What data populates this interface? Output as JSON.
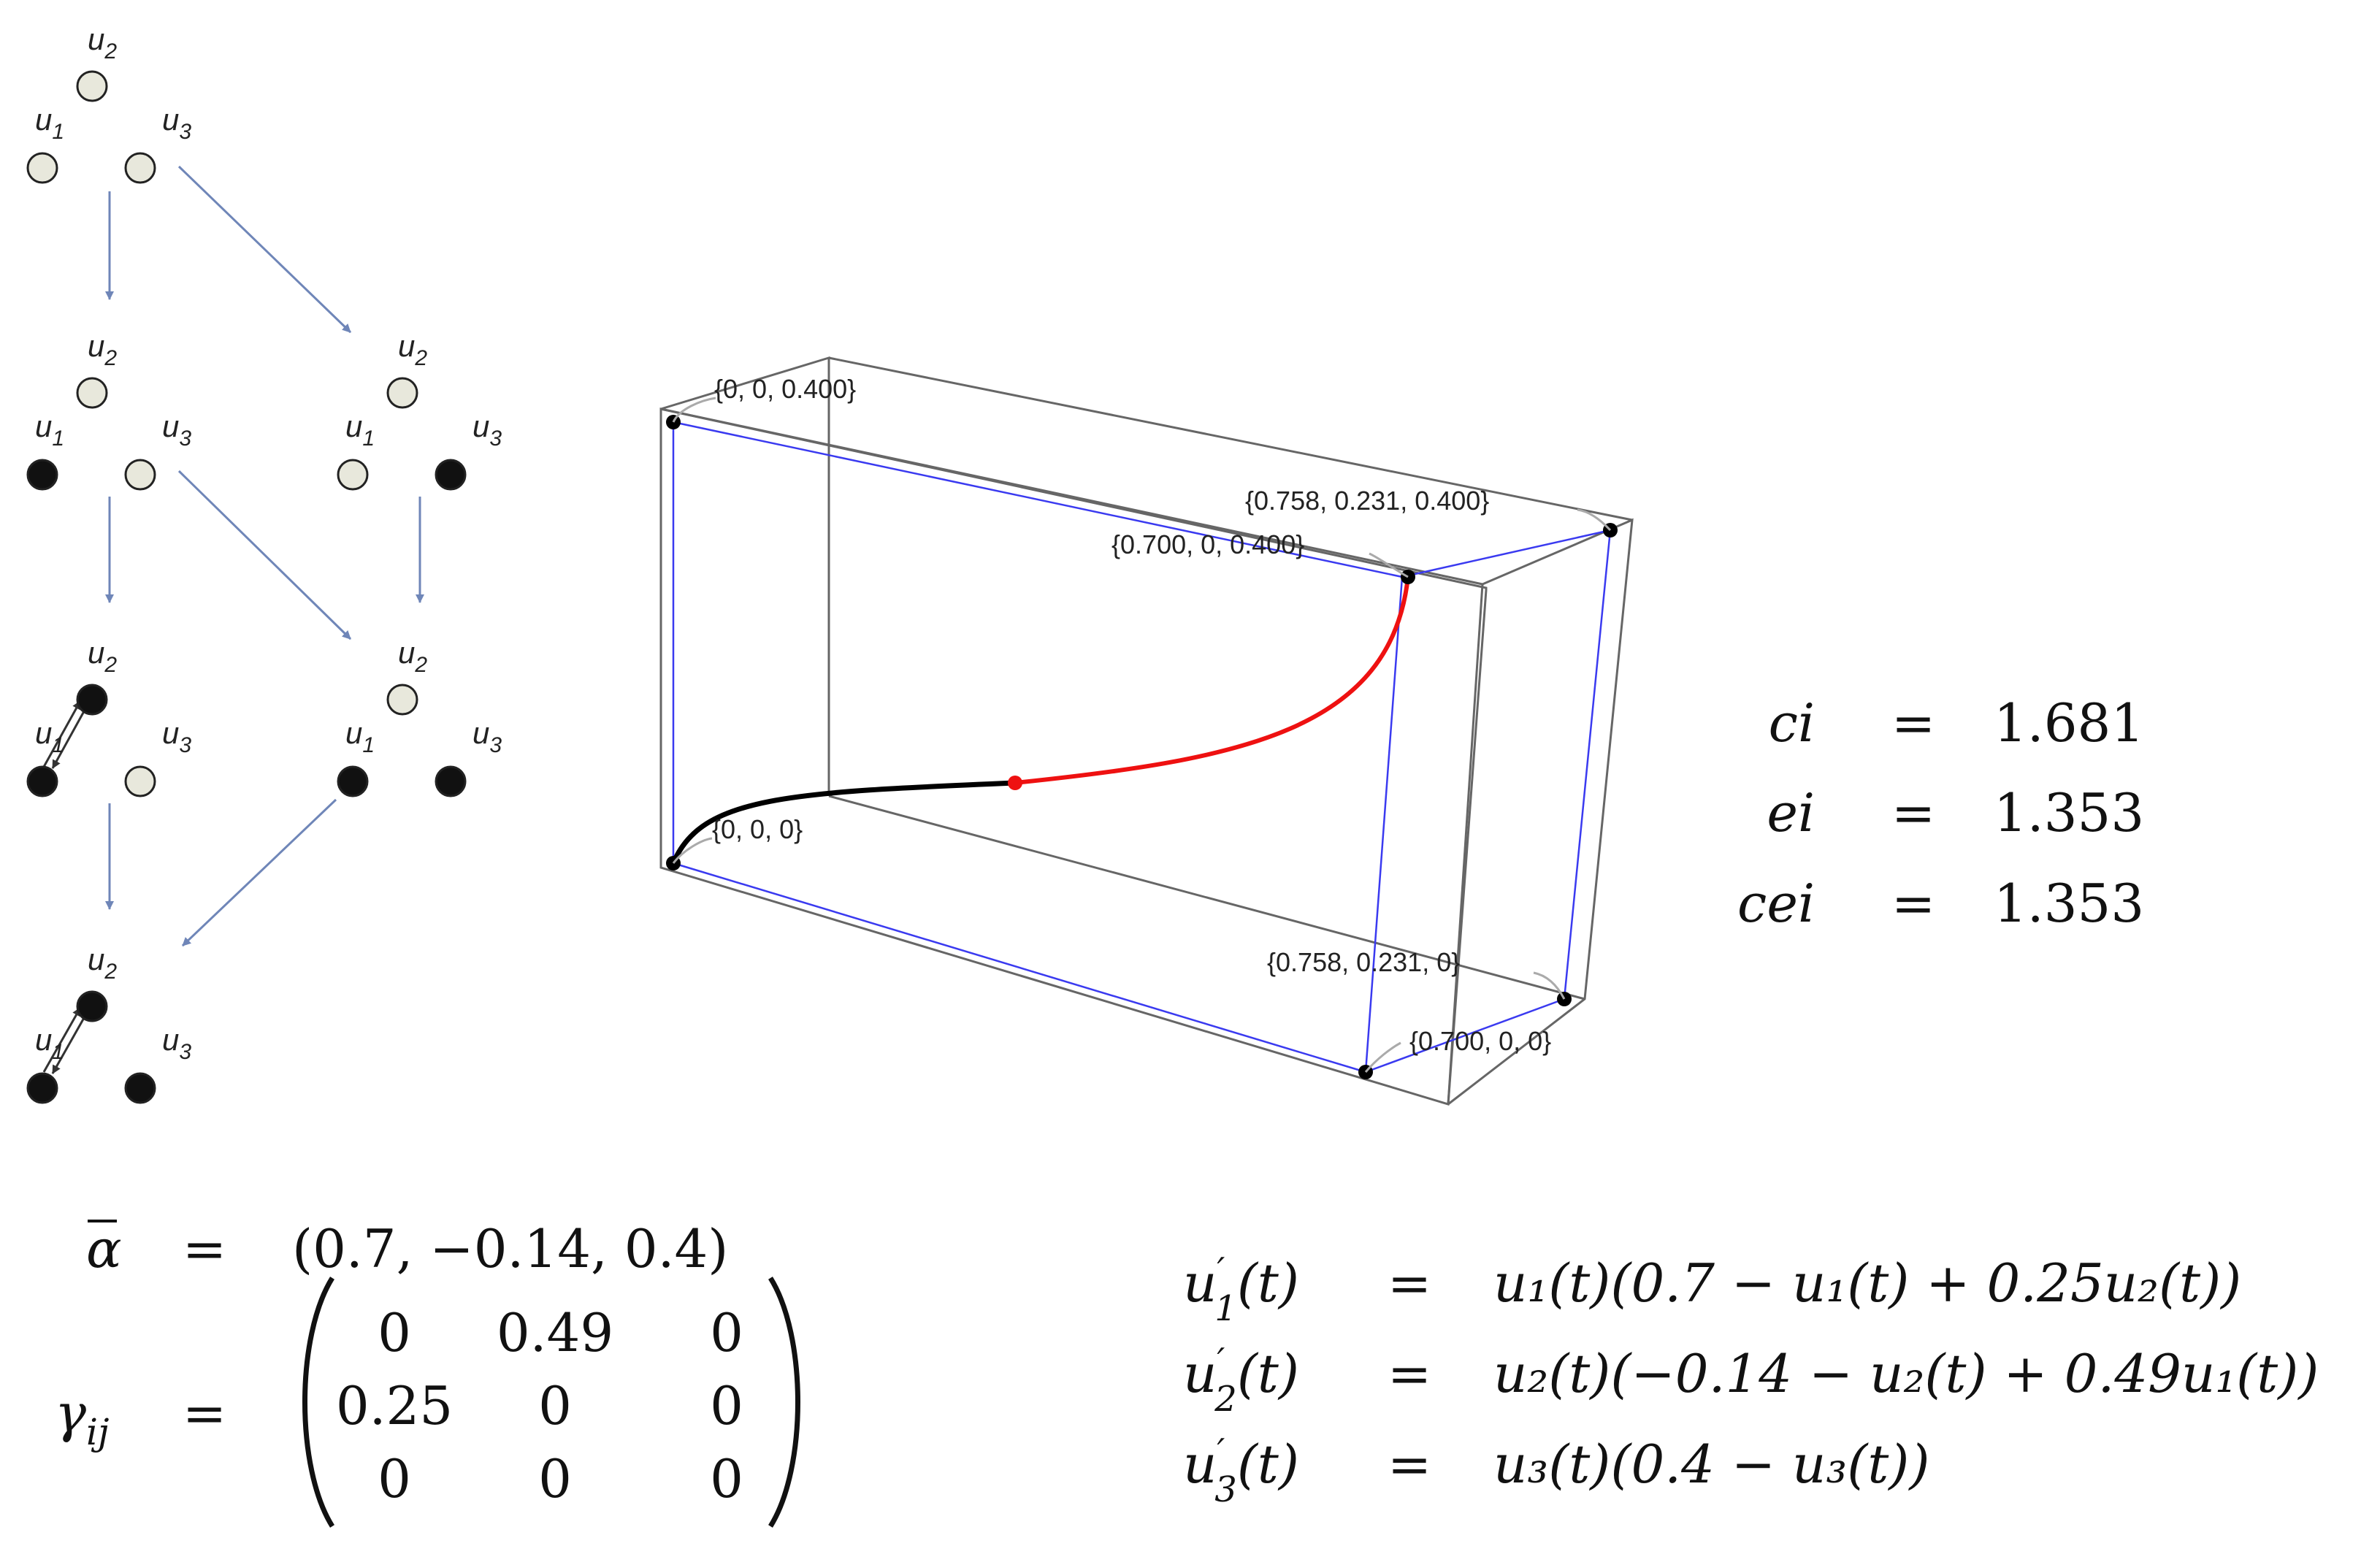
{
  "graph": {
    "node_labels": {
      "u1": "u",
      "u1_sub": "1",
      "u2": "u",
      "u2_sub": "2",
      "u3": "u",
      "u3_sub": "3"
    },
    "states": [
      {
        "id": "s0",
        "u1": "open",
        "u2": "open",
        "u3": "open"
      },
      {
        "id": "s1a",
        "u1": "filled",
        "u2": "open",
        "u3": "open"
      },
      {
        "id": "s1b",
        "u1": "open",
        "u2": "open",
        "u3": "filled"
      },
      {
        "id": "s2a",
        "u1": "filled",
        "u2": "filled",
        "u3": "open"
      },
      {
        "id": "s2b",
        "u1": "filled",
        "u2": "open",
        "u3": "filled"
      },
      {
        "id": "s3",
        "u1": "filled",
        "u2": "filled",
        "u3": "filled"
      }
    ],
    "colors": {
      "open": "#e8e8dc",
      "filled": "#111111",
      "arrow": "#6f86b8"
    }
  },
  "box3d": {
    "vertex_labels": {
      "v000": "{0, 0, 0}",
      "v00z": "{0, 0, 0.400}",
      "v0z": "{0.758, 0.231, 0.400}",
      "vxz": "{0.700, 0, 0.400}",
      "v0": "{0.758, 0.231, 0}",
      "vx": "{0.700, 0, 0}"
    },
    "colors": {
      "box": "#555555",
      "blue": "#3a3af0",
      "curve_start": "#000000",
      "curve_end": "#ee1111"
    }
  },
  "indices": [
    {
      "name": "ci",
      "eq": "=",
      "value": "1.681"
    },
    {
      "name": "ei",
      "eq": "=",
      "value": "1.353"
    },
    {
      "name": "cei",
      "eq": "=",
      "value": "1.353"
    }
  ],
  "params": {
    "alpha_symbol": "α",
    "eq": "=",
    "alpha_value": "(0.7, −0.14, 0.4)",
    "gamma_symbol": "γ",
    "gamma_sub": "ij",
    "matrix": [
      [
        "0",
        "0.49",
        "0"
      ],
      [
        "0.25",
        "0",
        "0"
      ],
      [
        "0",
        "0",
        "0"
      ]
    ]
  },
  "odes": [
    {
      "lhs_var": "u",
      "lhs_sub": "1",
      "lhs_rest": "(t)",
      "eq": "=",
      "rhs": "u₁(t)(0.7 − u₁(t) + 0.25u₂(t))"
    },
    {
      "lhs_var": "u",
      "lhs_sub": "2",
      "lhs_rest": "(t)",
      "eq": "=",
      "rhs": "u₂(t)(−0.14 − u₂(t) + 0.49u₁(t))"
    },
    {
      "lhs_var": "u",
      "lhs_sub": "3",
      "lhs_rest": "(t)",
      "eq": "=",
      "rhs": "u₃(t)(0.4 − u₃(t))"
    }
  ]
}
